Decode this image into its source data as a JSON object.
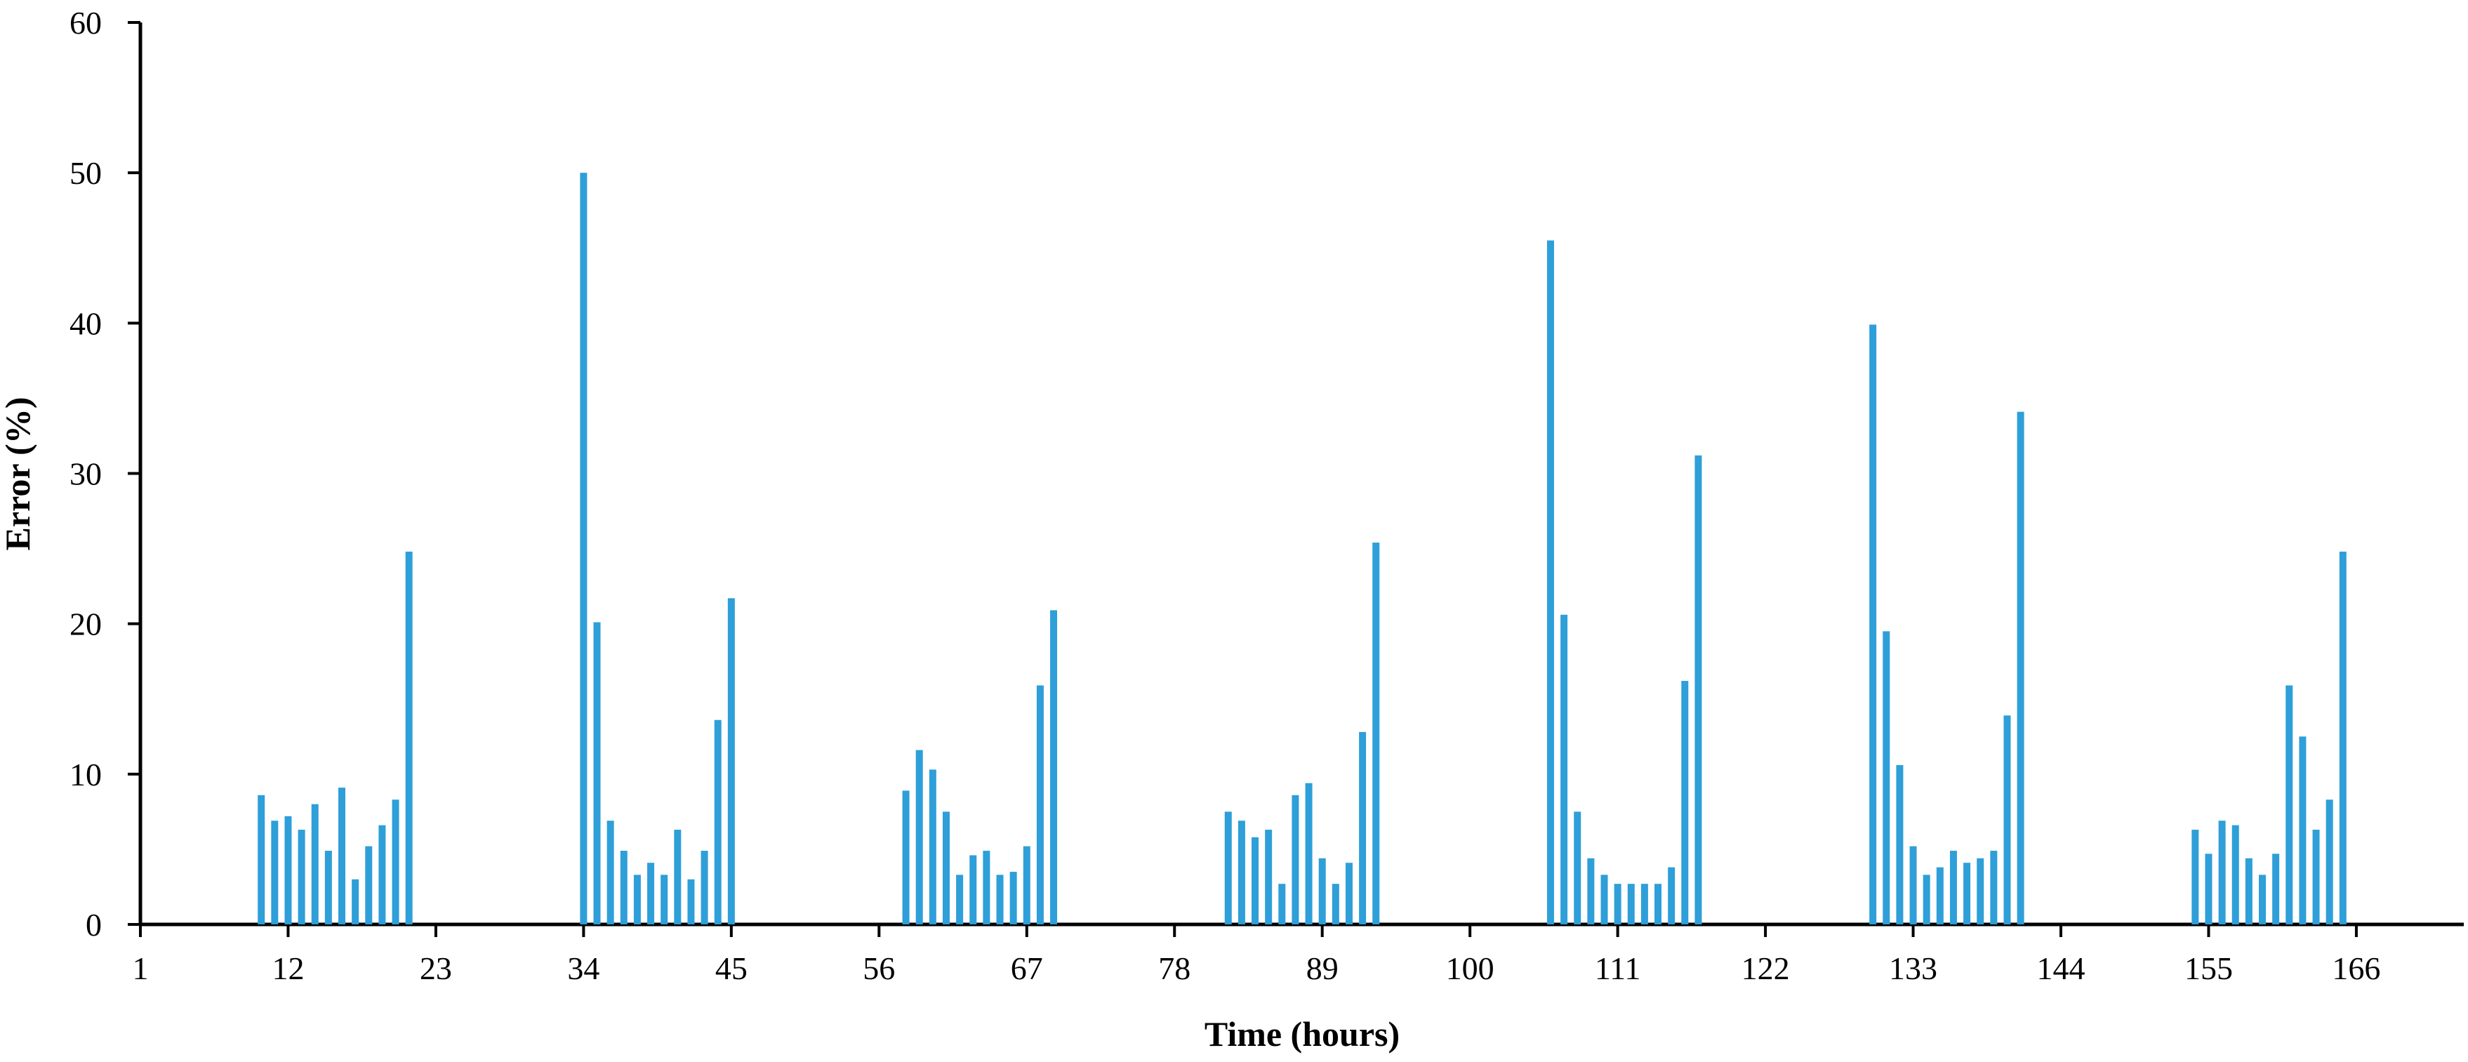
{
  "chart_data": {
    "type": "bar",
    "xlabel": "Time (hours)",
    "ylabel": "Error (%)",
    "ylim": [
      0,
      60
    ],
    "xlim": [
      1,
      174
    ],
    "x_ticks": [
      1,
      12,
      23,
      34,
      45,
      56,
      67,
      78,
      89,
      100,
      111,
      122,
      133,
      144,
      155,
      166
    ],
    "y_ticks": [
      0,
      10,
      20,
      30,
      40,
      50,
      60
    ],
    "grid": false,
    "legend": "none",
    "bar_color": "#2e9fd8",
    "x": [
      10,
      11,
      12,
      13,
      14,
      15,
      16,
      17,
      18,
      19,
      20,
      21,
      34,
      35,
      36,
      37,
      38,
      39,
      40,
      41,
      42,
      43,
      44,
      45,
      58,
      59,
      60,
      61,
      62,
      63,
      64,
      65,
      66,
      67,
      68,
      69,
      82,
      83,
      84,
      85,
      86,
      87,
      88,
      89,
      90,
      91,
      92,
      93,
      106,
      107,
      108,
      109,
      110,
      111,
      112,
      113,
      114,
      115,
      116,
      117,
      130,
      131,
      132,
      133,
      134,
      135,
      136,
      137,
      138,
      139,
      140,
      141,
      154,
      155,
      156,
      157,
      158,
      159,
      160,
      161,
      162,
      163,
      164,
      165
    ],
    "values": [
      8.6,
      6.9,
      7.2,
      6.3,
      8.0,
      4.9,
      9.1,
      3.0,
      5.2,
      6.6,
      8.3,
      24.8,
      50.0,
      20.1,
      6.9,
      4.9,
      3.3,
      4.1,
      3.3,
      6.3,
      3.0,
      4.9,
      13.6,
      21.7,
      8.9,
      11.6,
      10.3,
      7.5,
      3.3,
      4.6,
      4.9,
      3.3,
      3.5,
      5.2,
      15.9,
      20.9,
      7.5,
      6.9,
      5.8,
      6.3,
      2.7,
      8.6,
      9.4,
      4.4,
      2.7,
      4.1,
      12.8,
      25.4,
      45.5,
      20.6,
      7.5,
      4.4,
      3.3,
      2.7,
      2.7,
      2.7,
      2.7,
      3.8,
      16.2,
      31.2,
      39.9,
      19.5,
      10.6,
      5.2,
      3.3,
      3.8,
      4.9,
      4.1,
      4.4,
      4.9,
      13.9,
      34.1,
      6.3,
      4.7,
      6.9,
      6.6,
      4.4,
      3.3,
      4.7,
      15.9,
      12.5,
      6.3,
      8.3,
      24.8
    ]
  }
}
